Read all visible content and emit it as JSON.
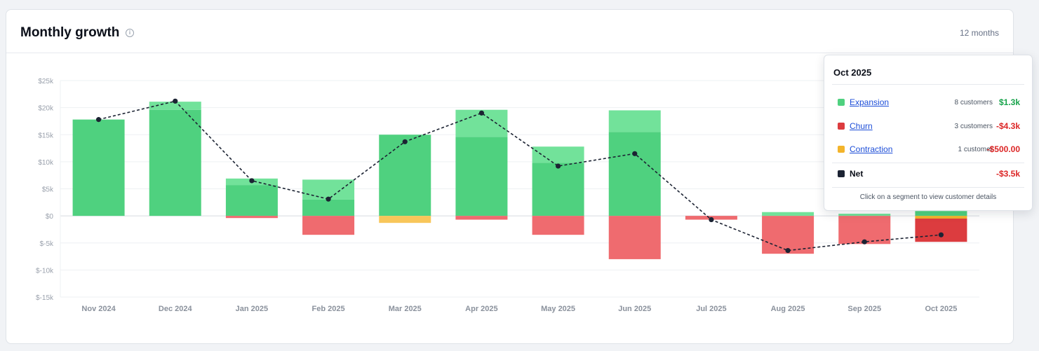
{
  "card": {
    "title": "Monthly growth",
    "period_label": "12 months"
  },
  "colors": {
    "expansion": "#4fd17f",
    "new": "#72e29a",
    "churn": "#ef6b6f",
    "churn_active": "#dc3c3f",
    "contraction": "#f8c65a",
    "contraction_active": "#f3b42b",
    "net_line": "#1c2333"
  },
  "chart_data": {
    "type": "bar",
    "stacked": true,
    "title": "",
    "xlabel": "",
    "ylabel": "",
    "ylim": [
      -15000,
      25000
    ],
    "y_ticks": [
      25000,
      20000,
      15000,
      10000,
      5000,
      0,
      -5000,
      -10000,
      -15000
    ],
    "y_tick_labels": [
      "$25k",
      "$20k",
      "$15k",
      "$10k",
      "$5k",
      "$0",
      "$-5k",
      "$-10k",
      "$-15k"
    ],
    "categories": [
      "Nov 2024",
      "Dec 2024",
      "Jan 2025",
      "Feb 2025",
      "Mar 2025",
      "Apr 2025",
      "May 2025",
      "Jun 2025",
      "Jul 2025",
      "Aug 2025",
      "Sep 2025",
      "Oct 2025"
    ],
    "series": [
      {
        "key": "expansion",
        "values": [
          17800,
          19600,
          5700,
          3000,
          15000,
          14600,
          9800,
          15500,
          0,
          0,
          0,
          800
        ]
      },
      {
        "key": "new",
        "values": [
          0,
          1500,
          1200,
          3700,
          0,
          5000,
          3000,
          4000,
          0,
          700,
          400,
          500
        ]
      },
      {
        "key": "churn",
        "values": [
          0,
          0,
          -400,
          -3500,
          0,
          -700,
          -3500,
          -8000,
          -700,
          -7000,
          -5200,
          -4300
        ]
      },
      {
        "key": "contraction",
        "values": [
          0,
          0,
          0,
          0,
          -1300,
          0,
          0,
          0,
          0,
          0,
          0,
          -500
        ]
      }
    ],
    "net": [
      17800,
      21200,
      6500,
      3100,
      13700,
      19000,
      9200,
      11500,
      -700,
      -6400,
      -4800,
      -3500
    ],
    "active_index": 11
  },
  "tooltip": {
    "title": "Oct 2025",
    "rows": [
      {
        "color_key": "expansion",
        "label": "Expansion",
        "count": "8 customers",
        "value": "$1.3k",
        "value_color": "#16a34a"
      },
      {
        "color_key": "churn_active",
        "label": "Churn",
        "count": "3 customers",
        "value": "-$4.3k",
        "value_color": "#dc2626"
      },
      {
        "color_key": "contraction_active",
        "label": "Contraction",
        "count": "1 customer",
        "value": "-$500.00",
        "value_color": "#dc2626"
      }
    ],
    "net": {
      "label": "Net",
      "value": "-$3.5k",
      "value_color": "#dc2626",
      "swatch": "#1c2333"
    },
    "hint": "Click on a segment to view customer details"
  }
}
